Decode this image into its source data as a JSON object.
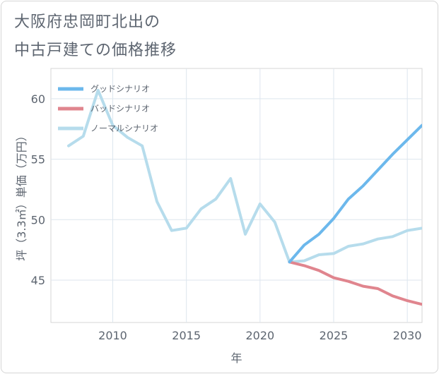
{
  "title_line1": "大阪府忠岡町北出の",
  "title_line2": "中古戸建ての価格推移",
  "chart_data": {
    "type": "line",
    "title": "大阪府忠岡町北出の中古戸建ての価格推移",
    "xlabel": "年",
    "ylabel": "坪（3.3㎡）単価（万円）",
    "xlim": [
      2005.8,
      2031
    ],
    "ylim": [
      41.5,
      62.5
    ],
    "xticks": [
      2010,
      2015,
      2020,
      2025,
      2030
    ],
    "yticks": [
      45,
      50,
      55,
      60
    ],
    "grid": true,
    "legend_position": "top-left",
    "series": [
      {
        "name": "グッドシナリオ",
        "color": "#6cb8ec",
        "x": [
          2022,
          2023,
          2024,
          2025,
          2026,
          2027,
          2028,
          2029,
          2030,
          2031
        ],
        "y": [
          46.5,
          47.9,
          48.8,
          50.1,
          51.7,
          52.8,
          54.1,
          55.4,
          56.6,
          57.8
        ]
      },
      {
        "name": "バッドシナリオ",
        "color": "#e0858e",
        "x": [
          2022,
          2023,
          2024,
          2025,
          2026,
          2027,
          2028,
          2029,
          2030,
          2031
        ],
        "y": [
          46.5,
          46.2,
          45.8,
          45.2,
          44.9,
          44.5,
          44.3,
          43.7,
          43.3,
          43.0
        ]
      },
      {
        "name": "ノーマルシナリオ",
        "color": "#b6dcec",
        "x": [
          2007,
          2008,
          2009,
          2010,
          2011,
          2012,
          2013,
          2014,
          2015,
          2016,
          2017,
          2018,
          2019,
          2020,
          2021,
          2022,
          2023,
          2024,
          2025,
          2026,
          2027,
          2028,
          2029,
          2030,
          2031
        ],
        "y": [
          56.1,
          56.9,
          60.7,
          57.8,
          56.8,
          56.1,
          51.5,
          49.1,
          49.3,
          50.9,
          51.7,
          53.4,
          48.8,
          51.3,
          49.8,
          46.5,
          46.6,
          47.1,
          47.2,
          47.8,
          48.0,
          48.4,
          48.6,
          49.1,
          49.3
        ]
      }
    ]
  }
}
